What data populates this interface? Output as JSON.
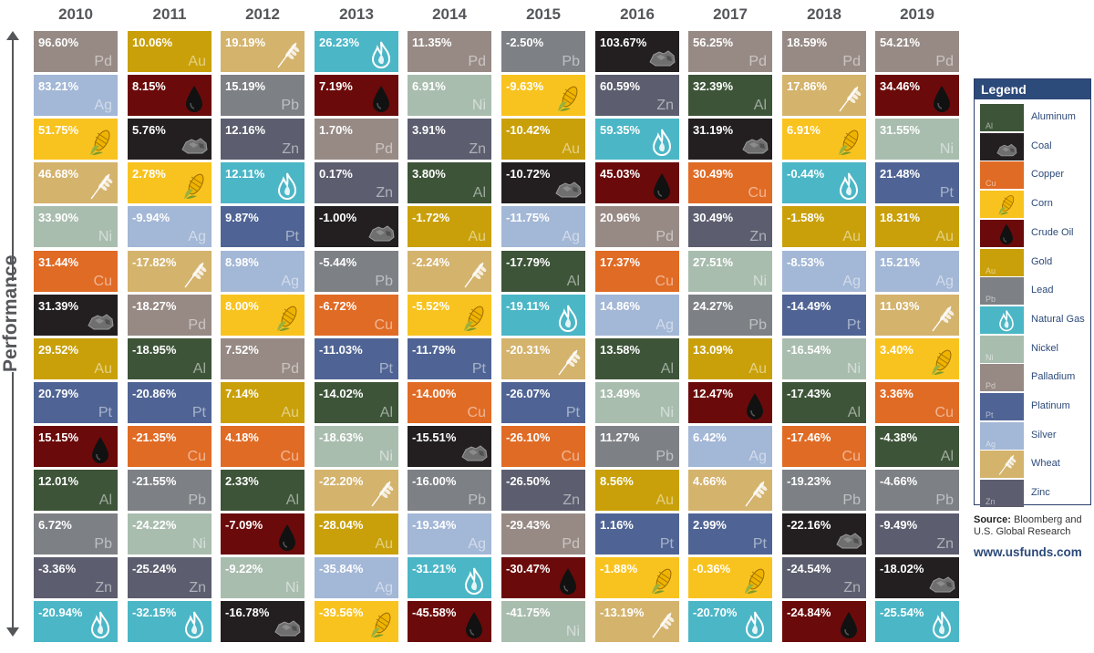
{
  "axis_label": "Performance",
  "legend": {
    "title": "Legend",
    "items": [
      {
        "key": "Al",
        "label": "Aluminum",
        "color": "#3d5438",
        "symbol": "Al"
      },
      {
        "key": "Coal",
        "label": "Coal",
        "color": "#231f20",
        "icon": "coal-icon"
      },
      {
        "key": "Cu",
        "label": "Copper",
        "color": "#e06b25",
        "symbol": "Cu"
      },
      {
        "key": "Corn",
        "label": "Corn",
        "color": "#f9c31f",
        "icon": "corn-icon"
      },
      {
        "key": "Oil",
        "label": "Crude Oil",
        "color": "#6b0a0a",
        "icon": "oil-drop-icon"
      },
      {
        "key": "Au",
        "label": "Gold",
        "color": "#c9a009",
        "symbol": "Au"
      },
      {
        "key": "Pb",
        "label": "Lead",
        "color": "#7d8084",
        "symbol": "Pb"
      },
      {
        "key": "Gas",
        "label": "Natural Gas",
        "color": "#4bb6c6",
        "icon": "flame-icon"
      },
      {
        "key": "Ni",
        "label": "Nickel",
        "color": "#a9bdaf",
        "symbol": "Ni"
      },
      {
        "key": "Pd",
        "label": "Palladium",
        "color": "#978a85",
        "symbol": "Pd"
      },
      {
        "key": "Pt",
        "label": "Platinum",
        "color": "#4f6494",
        "symbol": "Pt"
      },
      {
        "key": "Ag",
        "label": "Silver",
        "color": "#a3b7d6",
        "symbol": "Ag"
      },
      {
        "key": "Wheat",
        "label": "Wheat",
        "color": "#d4b36d",
        "icon": "wheat-icon"
      },
      {
        "key": "Zn",
        "label": "Zinc",
        "color": "#5c5e6f",
        "symbol": "Zn"
      }
    ]
  },
  "source": {
    "label": "Source:",
    "text": "Bloomberg and U.S. Global Research"
  },
  "website": "www.usfunds.com",
  "chart_data": {
    "type": "table",
    "title": "",
    "columns": [
      {
        "year": "2010",
        "cells": [
          {
            "value": "96.60%",
            "commodity": "Pd"
          },
          {
            "value": "83.21%",
            "commodity": "Ag"
          },
          {
            "value": "51.75%",
            "commodity": "Corn"
          },
          {
            "value": "46.68%",
            "commodity": "Wheat"
          },
          {
            "value": "33.90%",
            "commodity": "Ni"
          },
          {
            "value": "31.44%",
            "commodity": "Cu"
          },
          {
            "value": "31.39%",
            "commodity": "Coal"
          },
          {
            "value": "29.52%",
            "commodity": "Au"
          },
          {
            "value": "20.79%",
            "commodity": "Pt"
          },
          {
            "value": "15.15%",
            "commodity": "Oil"
          },
          {
            "value": "12.01%",
            "commodity": "Al"
          },
          {
            "value": "6.72%",
            "commodity": "Pb"
          },
          {
            "value": "-3.36%",
            "commodity": "Zn"
          },
          {
            "value": "-20.94%",
            "commodity": "Gas"
          }
        ]
      },
      {
        "year": "2011",
        "cells": [
          {
            "value": "10.06%",
            "commodity": "Au"
          },
          {
            "value": "8.15%",
            "commodity": "Oil"
          },
          {
            "value": "5.76%",
            "commodity": "Coal"
          },
          {
            "value": "2.78%",
            "commodity": "Corn"
          },
          {
            "value": "-9.94%",
            "commodity": "Ag"
          },
          {
            "value": "-17.82%",
            "commodity": "Wheat"
          },
          {
            "value": "-18.27%",
            "commodity": "Pd"
          },
          {
            "value": "-18.95%",
            "commodity": "Al"
          },
          {
            "value": "-20.86%",
            "commodity": "Pt"
          },
          {
            "value": "-21.35%",
            "commodity": "Cu"
          },
          {
            "value": "-21.55%",
            "commodity": "Pb"
          },
          {
            "value": "-24.22%",
            "commodity": "Ni"
          },
          {
            "value": "-25.24%",
            "commodity": "Zn"
          },
          {
            "value": "-32.15%",
            "commodity": "Gas"
          }
        ]
      },
      {
        "year": "2012",
        "cells": [
          {
            "value": "19.19%",
            "commodity": "Wheat"
          },
          {
            "value": "15.19%",
            "commodity": "Pb"
          },
          {
            "value": "12.16%",
            "commodity": "Zn"
          },
          {
            "value": "12.11%",
            "commodity": "Gas"
          },
          {
            "value": "9.87%",
            "commodity": "Pt"
          },
          {
            "value": "8.98%",
            "commodity": "Ag"
          },
          {
            "value": "8.00%",
            "commodity": "Corn"
          },
          {
            "value": "7.52%",
            "commodity": "Pd"
          },
          {
            "value": "7.14%",
            "commodity": "Au"
          },
          {
            "value": "4.18%",
            "commodity": "Cu"
          },
          {
            "value": "2.33%",
            "commodity": "Al"
          },
          {
            "value": "-7.09%",
            "commodity": "Oil"
          },
          {
            "value": "-9.22%",
            "commodity": "Ni"
          },
          {
            "value": "-16.78%",
            "commodity": "Coal"
          }
        ]
      },
      {
        "year": "2013",
        "cells": [
          {
            "value": "26.23%",
            "commodity": "Gas"
          },
          {
            "value": "7.19%",
            "commodity": "Oil"
          },
          {
            "value": "1.70%",
            "commodity": "Pd"
          },
          {
            "value": "0.17%",
            "commodity": "Zn"
          },
          {
            "value": "-1.00%",
            "commodity": "Coal"
          },
          {
            "value": "-5.44%",
            "commodity": "Pb"
          },
          {
            "value": "-6.72%",
            "commodity": "Cu"
          },
          {
            "value": "-11.03%",
            "commodity": "Pt"
          },
          {
            "value": "-14.02%",
            "commodity": "Al"
          },
          {
            "value": "-18.63%",
            "commodity": "Ni"
          },
          {
            "value": "-22.20%",
            "commodity": "Wheat"
          },
          {
            "value": "-28.04%",
            "commodity": "Au"
          },
          {
            "value": "-35.84%",
            "commodity": "Ag"
          },
          {
            "value": "-39.56%",
            "commodity": "Corn"
          }
        ]
      },
      {
        "year": "2014",
        "cells": [
          {
            "value": "11.35%",
            "commodity": "Pd"
          },
          {
            "value": "6.91%",
            "commodity": "Ni"
          },
          {
            "value": "3.91%",
            "commodity": "Zn"
          },
          {
            "value": "3.80%",
            "commodity": "Al"
          },
          {
            "value": "-1.72%",
            "commodity": "Au"
          },
          {
            "value": "-2.24%",
            "commodity": "Wheat"
          },
          {
            "value": "-5.52%",
            "commodity": "Corn"
          },
          {
            "value": "-11.79%",
            "commodity": "Pt"
          },
          {
            "value": "-14.00%",
            "commodity": "Cu"
          },
          {
            "value": "-15.51%",
            "commodity": "Coal"
          },
          {
            "value": "-16.00%",
            "commodity": "Pb"
          },
          {
            "value": "-19.34%",
            "commodity": "Ag"
          },
          {
            "value": "-31.21%",
            "commodity": "Gas"
          },
          {
            "value": "-45.58%",
            "commodity": "Oil"
          }
        ]
      },
      {
        "year": "2015",
        "cells": [
          {
            "value": "-2.50%",
            "commodity": "Pb"
          },
          {
            "value": "-9.63%",
            "commodity": "Corn"
          },
          {
            "value": "-10.42%",
            "commodity": "Au"
          },
          {
            "value": "-10.72%",
            "commodity": "Coal"
          },
          {
            "value": "-11.75%",
            "commodity": "Ag"
          },
          {
            "value": "-17.79%",
            "commodity": "Al"
          },
          {
            "value": "-19.11%",
            "commodity": "Gas"
          },
          {
            "value": "-20.31%",
            "commodity": "Wheat"
          },
          {
            "value": "-26.07%",
            "commodity": "Pt"
          },
          {
            "value": "-26.10%",
            "commodity": "Cu"
          },
          {
            "value": "-26.50%",
            "commodity": "Zn"
          },
          {
            "value": "-29.43%",
            "commodity": "Pd"
          },
          {
            "value": "-30.47%",
            "commodity": "Oil"
          },
          {
            "value": "-41.75%",
            "commodity": "Ni"
          }
        ]
      },
      {
        "year": "2016",
        "cells": [
          {
            "value": "103.67%",
            "commodity": "Coal"
          },
          {
            "value": "60.59%",
            "commodity": "Zn"
          },
          {
            "value": "59.35%",
            "commodity": "Gas"
          },
          {
            "value": "45.03%",
            "commodity": "Oil"
          },
          {
            "value": "20.96%",
            "commodity": "Pd"
          },
          {
            "value": "17.37%",
            "commodity": "Cu"
          },
          {
            "value": "14.86%",
            "commodity": "Ag"
          },
          {
            "value": "13.58%",
            "commodity": "Al"
          },
          {
            "value": "13.49%",
            "commodity": "Ni"
          },
          {
            "value": "11.27%",
            "commodity": "Pb"
          },
          {
            "value": "8.56%",
            "commodity": "Au"
          },
          {
            "value": "1.16%",
            "commodity": "Pt"
          },
          {
            "value": "-1.88%",
            "commodity": "Corn"
          },
          {
            "value": "-13.19%",
            "commodity": "Wheat"
          }
        ]
      },
      {
        "year": "2017",
        "cells": [
          {
            "value": "56.25%",
            "commodity": "Pd"
          },
          {
            "value": "32.39%",
            "commodity": "Al"
          },
          {
            "value": "31.19%",
            "commodity": "Coal"
          },
          {
            "value": "30.49%",
            "commodity": "Cu"
          },
          {
            "value": "30.49%",
            "commodity": "Zn"
          },
          {
            "value": "27.51%",
            "commodity": "Ni"
          },
          {
            "value": "24.27%",
            "commodity": "Pb"
          },
          {
            "value": "13.09%",
            "commodity": "Au"
          },
          {
            "value": "12.47%",
            "commodity": "Oil"
          },
          {
            "value": "6.42%",
            "commodity": "Ag"
          },
          {
            "value": "4.66%",
            "commodity": "Wheat"
          },
          {
            "value": "2.99%",
            "commodity": "Pt"
          },
          {
            "value": "-0.36%",
            "commodity": "Corn"
          },
          {
            "value": "-20.70%",
            "commodity": "Gas"
          }
        ]
      },
      {
        "year": "2018",
        "cells": [
          {
            "value": "18.59%",
            "commodity": "Pd"
          },
          {
            "value": "17.86%",
            "commodity": "Wheat"
          },
          {
            "value": "6.91%",
            "commodity": "Corn"
          },
          {
            "value": "-0.44%",
            "commodity": "Gas"
          },
          {
            "value": "-1.58%",
            "commodity": "Au"
          },
          {
            "value": "-8.53%",
            "commodity": "Ag"
          },
          {
            "value": "-14.49%",
            "commodity": "Pt"
          },
          {
            "value": "-16.54%",
            "commodity": "Ni"
          },
          {
            "value": "-17.43%",
            "commodity": "Al"
          },
          {
            "value": "-17.46%",
            "commodity": "Cu"
          },
          {
            "value": "-19.23%",
            "commodity": "Pb"
          },
          {
            "value": "-22.16%",
            "commodity": "Coal"
          },
          {
            "value": "-24.54%",
            "commodity": "Zn"
          },
          {
            "value": "-24.84%",
            "commodity": "Oil"
          }
        ]
      },
      {
        "year": "2019",
        "cells": [
          {
            "value": "54.21%",
            "commodity": "Pd"
          },
          {
            "value": "34.46%",
            "commodity": "Oil"
          },
          {
            "value": "31.55%",
            "commodity": "Ni"
          },
          {
            "value": "21.48%",
            "commodity": "Pt"
          },
          {
            "value": "18.31%",
            "commodity": "Au"
          },
          {
            "value": "15.21%",
            "commodity": "Ag"
          },
          {
            "value": "11.03%",
            "commodity": "Wheat"
          },
          {
            "value": "3.40%",
            "commodity": "Corn"
          },
          {
            "value": "3.36%",
            "commodity": "Cu"
          },
          {
            "value": "-4.38%",
            "commodity": "Al"
          },
          {
            "value": "-4.66%",
            "commodity": "Pb"
          },
          {
            "value": "-9.49%",
            "commodity": "Zn"
          },
          {
            "value": "-18.02%",
            "commodity": "Coal"
          },
          {
            "value": "-25.54%",
            "commodity": "Gas"
          }
        ]
      }
    ]
  }
}
